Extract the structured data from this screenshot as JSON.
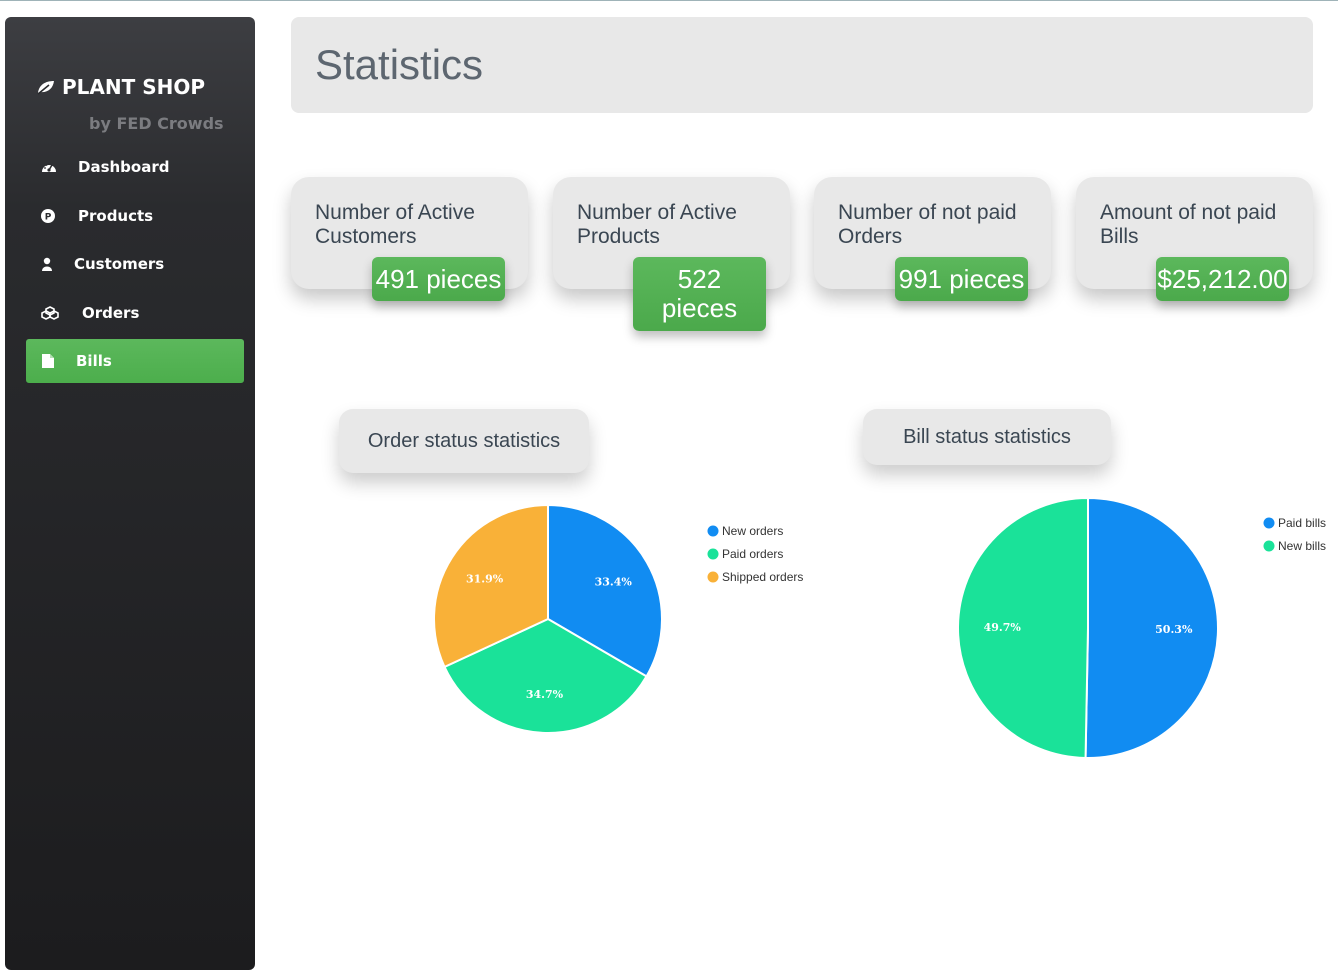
{
  "app": {
    "brand": "PLANT SHOP",
    "brand_sub": "by FED Crowds"
  },
  "sidebar": {
    "items": [
      {
        "label": "Dashboard",
        "icon": "dashboard-icon",
        "active": false
      },
      {
        "label": "Products",
        "icon": "product-icon",
        "active": false
      },
      {
        "label": "Customers",
        "icon": "user-icon",
        "active": false
      },
      {
        "label": "Orders",
        "icon": "cubes-icon",
        "active": false
      },
      {
        "label": "Bills",
        "icon": "file-icon",
        "active": true
      }
    ]
  },
  "header": {
    "title": "Statistics"
  },
  "stats": [
    {
      "title": "Number of Active Customers",
      "value": "491 pieces"
    },
    {
      "title": "Number of Active Products",
      "value": "522 pieces"
    },
    {
      "title": "Number of not paid Orders",
      "value": "991 pieces"
    },
    {
      "title": "Amount of not paid Bills",
      "value": "$25,212.00"
    }
  ],
  "colors": {
    "accent_green": "#5cb85c",
    "blue": "#118cf2",
    "teal": "#1ae299",
    "orange": "#f9b138"
  },
  "chart_data": [
    {
      "type": "pie",
      "title": "Order status statistics",
      "categories": [
        "New orders",
        "Paid orders",
        "Shipped orders"
      ],
      "values": [
        33.4,
        34.7,
        31.9
      ],
      "labels": [
        "33.4%",
        "34.7%",
        "31.9%"
      ],
      "colors": [
        "#118cf2",
        "#1ae299",
        "#f9b138"
      ],
      "legend": "right"
    },
    {
      "type": "pie",
      "title": "Bill status statistics",
      "categories": [
        "Paid bills",
        "New bills"
      ],
      "values": [
        50.3,
        49.7
      ],
      "labels": [
        "50.3%",
        "49.7%"
      ],
      "colors": [
        "#118cf2",
        "#1ae299"
      ],
      "legend": "right"
    }
  ]
}
